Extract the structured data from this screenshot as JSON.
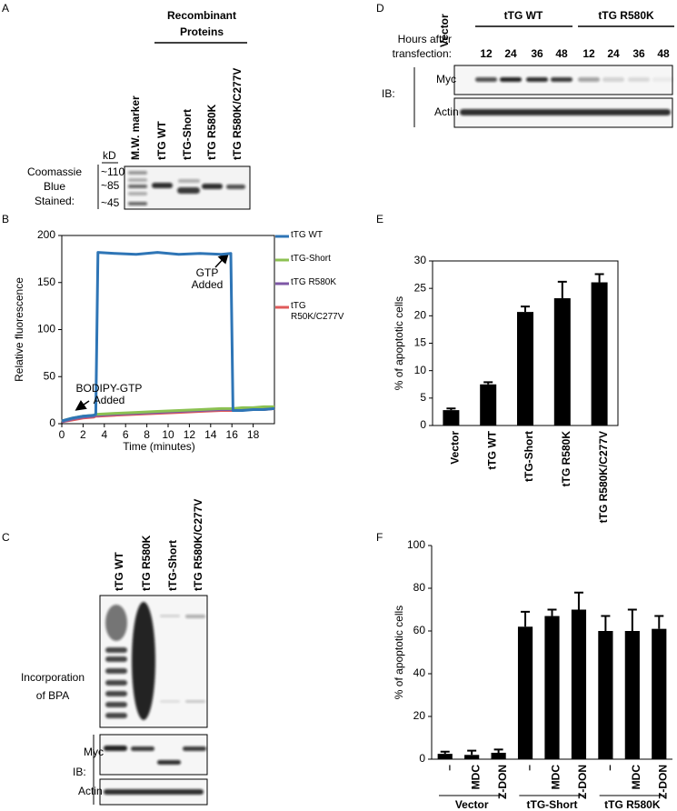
{
  "panels": {
    "A": {
      "label": "A",
      "heading": [
        "Recombinant",
        "Proteins"
      ],
      "lanes": [
        "M.W. marker",
        "tTG WT",
        "tTG-Short",
        "tTG R580K",
        "tTG R580K/C277V"
      ],
      "unit": "kD",
      "markers": [
        "~110",
        "~85",
        "~45"
      ],
      "stain": [
        "Coomassie",
        "Blue",
        "Stained:"
      ]
    },
    "C": {
      "label": "C",
      "lanes": [
        "tTG WT",
        "tTG R580K",
        "tTG-Short",
        "tTG R580K/C277V"
      ],
      "assay": [
        "Incorporation",
        "of BPA"
      ],
      "ib": "IB:",
      "rows": [
        "Myc",
        "Actin"
      ]
    },
    "D": {
      "label": "D",
      "vector": "Vector",
      "groups": [
        "tTG WT",
        "tTG R580K"
      ],
      "hours_label": [
        "Hours after",
        "transfection:"
      ],
      "hours": [
        12,
        24,
        36,
        48,
        12,
        24,
        36,
        48
      ],
      "ib": "IB:",
      "rows": [
        "Myc",
        "Actin"
      ]
    }
  },
  "chart_data": [
    {
      "type": "line",
      "panel": "B",
      "xlabel": "Time (minutes)",
      "ylabel": "Relative fluorescence",
      "frame": true,
      "x": [
        0,
        1,
        2,
        3,
        3.2,
        3.4,
        5,
        7,
        9,
        11,
        13,
        15,
        15.9,
        16.1,
        17,
        18,
        19,
        20
      ],
      "series": [
        {
          "name": "tTG WT",
          "color": "#2e75b6",
          "values": [
            3,
            6,
            8,
            9,
            10,
            182,
            181,
            180,
            182,
            180,
            181,
            180,
            181,
            14,
            14,
            15,
            15,
            16
          ]
        },
        {
          "name": "tTG-Short",
          "color": "#8cc152",
          "values": [
            3,
            6,
            8,
            9,
            10,
            10,
            11,
            12,
            13,
            14,
            15,
            16,
            16,
            16,
            17,
            17,
            18,
            18
          ]
        },
        {
          "name": "tTG R580K",
          "color": "#7e57a6",
          "values": [
            2,
            5,
            7,
            8,
            9,
            9,
            10,
            11,
            12,
            13,
            14,
            15,
            15,
            15,
            16,
            16,
            17,
            17
          ]
        },
        {
          "name": "tTG R50K/C277V",
          "color": "#e05a5a",
          "values": [
            2,
            4,
            6,
            7,
            8,
            8,
            9,
            10,
            11,
            12,
            13,
            14,
            14,
            14,
            15,
            15,
            15,
            16
          ]
        }
      ],
      "annotations": [
        [
          "GTP",
          "Added"
        ],
        [
          "BODIPY-GTP",
          "Added"
        ]
      ],
      "xlim": [
        0,
        20
      ],
      "xticks": [
        0,
        2,
        4,
        6,
        8,
        10,
        12,
        14,
        16,
        18
      ],
      "ylim": [
        0,
        200
      ],
      "yticks": [
        0,
        50,
        100,
        150,
        200
      ]
    },
    {
      "type": "bar",
      "panel": "E",
      "ylabel": "% of apoptotic cells",
      "frame": true,
      "color": "#000000",
      "categories": [
        "Vector",
        "tTG WT",
        "tTG-Short",
        "tTG R580K",
        "tTG R580K/C277V"
      ],
      "values": [
        2.8,
        7.5,
        20.7,
        23.2,
        26.1
      ],
      "errors": [
        0.3,
        0.4,
        1,
        3,
        1.5
      ],
      "ylim": [
        0,
        30
      ],
      "yticks": [
        0,
        5,
        10,
        15,
        20,
        25,
        30
      ]
    },
    {
      "type": "bar",
      "panel": "F",
      "ylabel": "% of apoptotic cells",
      "frame": false,
      "color": "#000000",
      "categories": [
        "–",
        "MDC",
        "Z-DON",
        "–",
        "MDC",
        "Z-DON",
        "–",
        "MDC",
        "Z-DON"
      ],
      "values": [
        2.5,
        2,
        3,
        62,
        67,
        70,
        60,
        60,
        61
      ],
      "errors": [
        1,
        2,
        1.5,
        7,
        3,
        8,
        7,
        10,
        6
      ],
      "groups": [
        "Vector",
        "tTG-Short",
        "tTG R580K"
      ],
      "ylim": [
        0,
        100
      ],
      "yticks": [
        0,
        20,
        40,
        60,
        80,
        100
      ]
    }
  ]
}
